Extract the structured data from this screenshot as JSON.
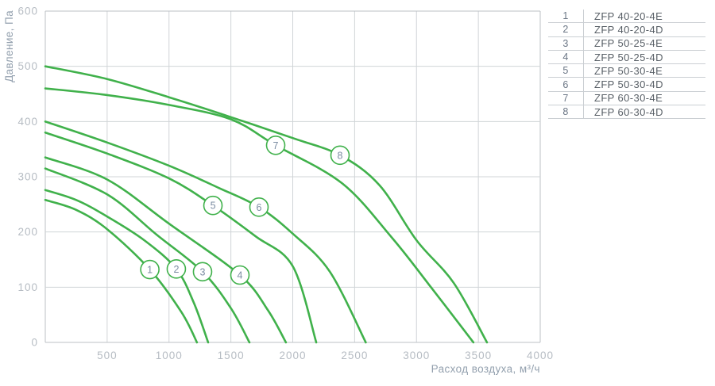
{
  "legend": {
    "rows": [
      {
        "num": "1",
        "model": "ZFP 40-20-4E"
      },
      {
        "num": "2",
        "model": "ZFP 40-20-4D"
      },
      {
        "num": "3",
        "model": "ZFP 50-25-4E"
      },
      {
        "num": "4",
        "model": "ZFP 50-25-4D"
      },
      {
        "num": "5",
        "model": "ZFP 50-30-4E"
      },
      {
        "num": "6",
        "model": "ZFP 50-30-4D"
      },
      {
        "num": "7",
        "model": "ZFP 60-30-4E"
      },
      {
        "num": "8",
        "model": "ZFP 60-30-4D"
      }
    ]
  },
  "chart_data": {
    "type": "line",
    "title": "",
    "xlabel": "Расход воздуха, м³/ч",
    "ylabel": "Давление, Па",
    "xlim": [
      0,
      4000
    ],
    "ylim": [
      0,
      600
    ],
    "x_ticks": [
      0,
      500,
      1000,
      1500,
      2000,
      2500,
      3000,
      3500,
      4000
    ],
    "x_tick_labels": [
      500,
      1000,
      1500,
      2000,
      2500,
      3000,
      3500,
      4000
    ],
    "y_ticks": [
      0,
      100,
      200,
      300,
      400,
      500,
      600
    ],
    "grid": true,
    "legend_position": "right-table",
    "series": [
      {
        "label": "1",
        "name": "ZFP 40-20-4E",
        "label_at": [
          845,
          132
        ],
        "points": [
          [
            0,
            258
          ],
          [
            250,
            240
          ],
          [
            500,
            205
          ],
          [
            845,
            132
          ],
          [
            1100,
            55
          ],
          [
            1226,
            0
          ]
        ]
      },
      {
        "label": "2",
        "name": "ZFP 40-20-4D",
        "label_at": [
          1059,
          133
        ],
        "points": [
          [
            0,
            276
          ],
          [
            250,
            258
          ],
          [
            500,
            228
          ],
          [
            800,
            185
          ],
          [
            1059,
            133
          ],
          [
            1200,
            72
          ],
          [
            1316,
            0
          ]
        ]
      },
      {
        "label": "3",
        "name": "ZFP 50-25-4E",
        "label_at": [
          1271,
          128
        ],
        "points": [
          [
            0,
            315
          ],
          [
            500,
            268
          ],
          [
            900,
            195
          ],
          [
            1271,
            128
          ],
          [
            1500,
            62
          ],
          [
            1650,
            0
          ]
        ]
      },
      {
        "label": "4",
        "name": "ZFP 50-25-4D",
        "label_at": [
          1573,
          122
        ],
        "points": [
          [
            0,
            335
          ],
          [
            500,
            295
          ],
          [
            1000,
            215
          ],
          [
            1573,
            122
          ],
          [
            1800,
            58
          ],
          [
            1945,
            0
          ]
        ]
      },
      {
        "label": "5",
        "name": "ZFP 50-30-4E",
        "label_at": [
          1355,
          248
        ],
        "points": [
          [
            0,
            380
          ],
          [
            500,
            342
          ],
          [
            1000,
            297
          ],
          [
            1355,
            248
          ],
          [
            1700,
            192
          ],
          [
            2000,
            138
          ],
          [
            2190,
            0
          ]
        ]
      },
      {
        "label": "6",
        "name": "ZFP 50-30-4D",
        "label_at": [
          1727,
          245
        ],
        "points": [
          [
            0,
            400
          ],
          [
            500,
            362
          ],
          [
            1000,
            320
          ],
          [
            1400,
            280
          ],
          [
            1727,
            245
          ],
          [
            2000,
            197
          ],
          [
            2300,
            128
          ],
          [
            2590,
            0
          ]
        ]
      },
      {
        "label": "7",
        "name": "ZFP 60-30-4E",
        "label_at": [
          1862,
          357
        ],
        "points": [
          [
            0,
            460
          ],
          [
            500,
            448
          ],
          [
            1000,
            430
          ],
          [
            1500,
            404
          ],
          [
            1862,
            357
          ],
          [
            2400,
            288
          ],
          [
            2800,
            190
          ],
          [
            3100,
            105
          ],
          [
            3460,
            0
          ]
        ]
      },
      {
        "label": "8",
        "name": "ZFP 60-30-4D",
        "label_at": [
          2382,
          339
        ],
        "points": [
          [
            0,
            500
          ],
          [
            500,
            477
          ],
          [
            1000,
            444
          ],
          [
            1500,
            408
          ],
          [
            2000,
            370
          ],
          [
            2382,
            339
          ],
          [
            2700,
            285
          ],
          [
            3000,
            185
          ],
          [
            3300,
            108
          ],
          [
            3570,
            0
          ]
        ]
      }
    ]
  },
  "colors": {
    "curve": "#40b14b",
    "grid": "#d0d4d7",
    "border": "#bcc1c6",
    "tick_text": "#b6bcc3",
    "axis_title_text": "#93a0ae",
    "marker_number": "#7b8ca2",
    "legend_number": "#6b7685",
    "legend_model": "#585f66",
    "legend_border": "#cbcfd3"
  }
}
